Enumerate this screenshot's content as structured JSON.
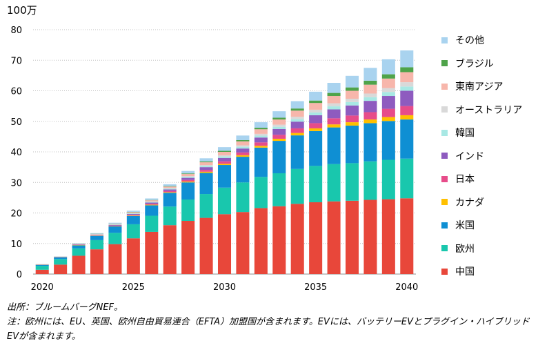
{
  "chart_data": {
    "type": "bar",
    "stacked": true,
    "unit_label": "100万",
    "y_ticks": [
      0,
      10,
      20,
      30,
      40,
      50,
      60,
      70,
      80
    ],
    "ylim": [
      0,
      80
    ],
    "x_tick_labels": [
      "2020",
      "2025",
      "2030",
      "2035",
      "2040"
    ],
    "categories": [
      2020,
      2021,
      2022,
      2023,
      2024,
      2025,
      2026,
      2027,
      2028,
      2029,
      2030,
      2031,
      2032,
      2033,
      2034,
      2035,
      2036,
      2037,
      2038,
      2039,
      2040
    ],
    "grid": true,
    "legend_position": "right",
    "series": [
      {
        "name": "中国",
        "color": "#e8473a",
        "values": [
          1.4,
          3.1,
          6.0,
          8.1,
          9.8,
          11.7,
          13.8,
          16.0,
          17.4,
          18.4,
          19.6,
          20.3,
          21.6,
          22.2,
          23.0,
          23.5,
          23.8,
          24.0,
          24.3,
          24.5,
          24.8
        ]
      },
      {
        "name": "欧州",
        "color": "#19c7ad",
        "values": [
          1.3,
          1.8,
          2.4,
          3.0,
          3.7,
          4.6,
          5.3,
          6.1,
          7.0,
          7.8,
          8.7,
          9.7,
          10.2,
          10.8,
          11.4,
          11.9,
          12.2,
          12.3,
          12.6,
          12.9,
          13.0
        ]
      },
      {
        "name": "米国",
        "color": "#0f8fd3",
        "values": [
          0.3,
          0.6,
          1.0,
          1.4,
          2.1,
          2.7,
          3.4,
          4.5,
          5.6,
          6.9,
          7.4,
          8.4,
          9.6,
          10.6,
          11.0,
          11.4,
          12.0,
          12.3,
          12.5,
          12.7,
          12.8
        ]
      },
      {
        "name": "カナダ",
        "color": "#ffc000",
        "values": [
          0.05,
          0.05,
          0.1,
          0.1,
          0.1,
          0.15,
          0.2,
          0.2,
          0.3,
          0.4,
          0.4,
          0.5,
          0.6,
          0.7,
          0.8,
          0.9,
          1.0,
          1.1,
          1.2,
          1.3,
          1.4
        ]
      },
      {
        "name": "日本",
        "color": "#e74c8a",
        "values": [
          0.05,
          0.05,
          0.1,
          0.1,
          0.15,
          0.2,
          0.3,
          0.4,
          0.5,
          0.6,
          0.8,
          0.9,
          1.1,
          1.3,
          1.5,
          1.7,
          2.0,
          2.2,
          2.4,
          2.7,
          3.0
        ]
      },
      {
        "name": "インド",
        "color": "#8e5bbf",
        "values": [
          0.05,
          0.05,
          0.1,
          0.15,
          0.2,
          0.3,
          0.4,
          0.5,
          0.7,
          0.9,
          1.1,
          1.3,
          1.6,
          1.9,
          2.2,
          2.6,
          2.9,
          3.3,
          3.7,
          4.2,
          5.0
        ]
      },
      {
        "name": "韓国",
        "color": "#a8e8e4",
        "values": [
          0.05,
          0.05,
          0.1,
          0.1,
          0.15,
          0.2,
          0.25,
          0.3,
          0.35,
          0.4,
          0.5,
          0.55,
          0.6,
          0.7,
          0.8,
          0.9,
          1.0,
          1.1,
          1.2,
          1.3,
          1.4
        ]
      },
      {
        "name": "オーストラリア",
        "color": "#d9d9d9",
        "values": [
          0.0,
          0.0,
          0.05,
          0.05,
          0.05,
          0.1,
          0.1,
          0.15,
          0.2,
          0.3,
          0.4,
          0.5,
          0.6,
          0.7,
          0.8,
          0.9,
          1.0,
          1.1,
          1.2,
          1.3,
          1.4
        ]
      },
      {
        "name": "東南アジア",
        "color": "#f7b6ab",
        "values": [
          0.05,
          0.05,
          0.1,
          0.15,
          0.2,
          0.3,
          0.4,
          0.5,
          0.7,
          0.9,
          1.1,
          1.3,
          1.5,
          1.7,
          2.0,
          2.2,
          2.4,
          2.6,
          2.9,
          3.1,
          3.3
        ]
      },
      {
        "name": "ブラジル",
        "color": "#4fa34a",
        "values": [
          0.0,
          0.0,
          0.05,
          0.05,
          0.05,
          0.1,
          0.1,
          0.15,
          0.2,
          0.3,
          0.35,
          0.4,
          0.5,
          0.6,
          0.7,
          0.8,
          1.0,
          1.1,
          1.3,
          1.4,
          1.6
        ]
      },
      {
        "name": "その他",
        "color": "#a9d3ef",
        "values": [
          0.05,
          0.05,
          0.1,
          0.2,
          0.3,
          0.4,
          0.5,
          0.6,
          0.8,
          1.0,
          1.2,
          1.5,
          1.8,
          2.1,
          2.4,
          2.9,
          3.3,
          3.8,
          4.2,
          4.9,
          5.5
        ]
      }
    ]
  },
  "notes": {
    "source": "出所：ブルームバーグNEF。",
    "note": "注：欧州には、EU、英国、欧州自由貿易連合（EFTA）加盟国が含まれます。EVには、バッテリーEVとプラグイン・ハイブリッドEVが含まれます。"
  }
}
